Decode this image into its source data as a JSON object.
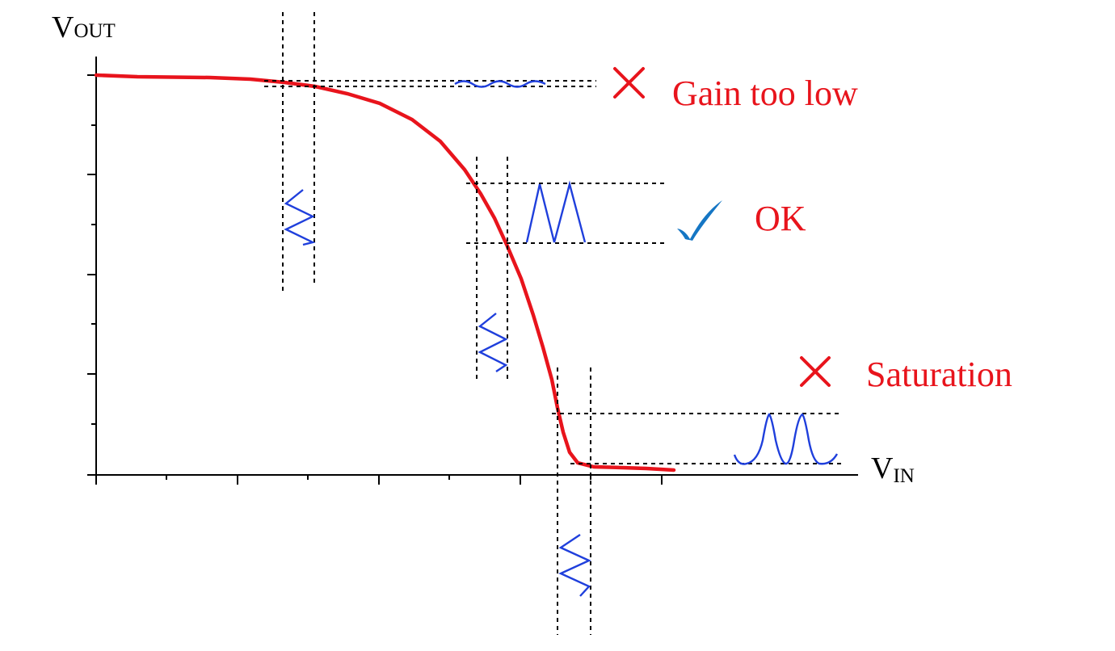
{
  "colors": {
    "transfer_curve": "#e8141c",
    "waveform": "#1f3fdc",
    "cross": "#e8141c",
    "check": "#1576c4",
    "label_red": "#e8141c",
    "axis": "#000000"
  },
  "axes": {
    "y_label_main": "V",
    "y_label_sub": "OUT",
    "x_label_main": "V",
    "x_label_sub": "IN"
  },
  "annotations": {
    "gain_low": {
      "label": "Gain too low",
      "icon": "cross-icon"
    },
    "ok": {
      "label": "OK",
      "icon": "check-icon"
    },
    "saturation": {
      "label": "Saturation",
      "icon": "cross-icon"
    }
  }
}
